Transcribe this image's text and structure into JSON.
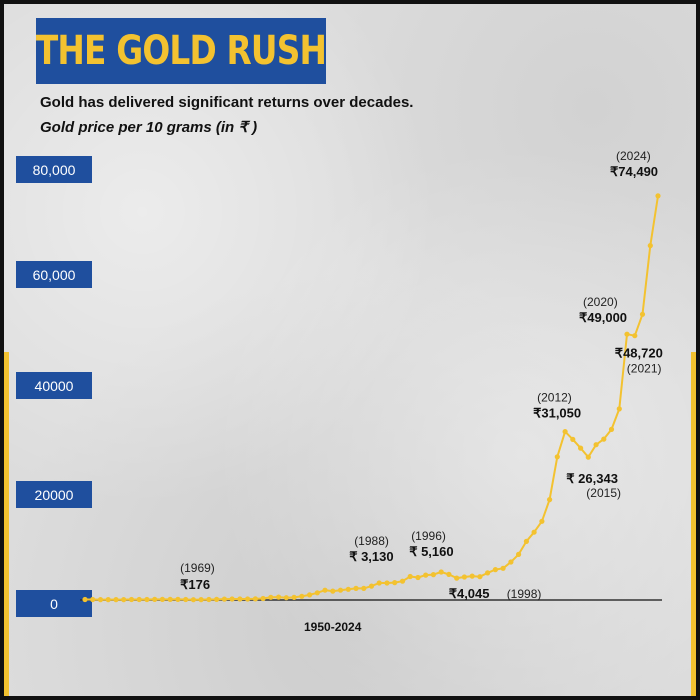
{
  "title": "THE GOLD RUSH",
  "subtitle": "Gold has delivered significant returns over decades.",
  "unit_label": "Gold price per 10 grams (in ₹ )",
  "colors": {
    "line": "#f3c230",
    "title_bg": "#1f4f9e",
    "title_text": "#f3c230",
    "tick_bg": "#1f4f9e",
    "axis": "#333333"
  },
  "chart_data": {
    "type": "line",
    "title": "THE GOLD RUSH",
    "subtitle": "Gold has delivered significant returns over decades.",
    "ylabel": "Gold price per 10 grams (in ₹ )",
    "xlabel": "1950-2024",
    "x_range": [
      1950,
      2024
    ],
    "ylim": [
      0,
      80000
    ],
    "y_ticks": [
      "0",
      "20000",
      "40000",
      "60,000",
      "80,000"
    ],
    "y_tick_values": [
      0,
      20000,
      40000,
      60000,
      80000
    ],
    "grid": false,
    "series": [
      {
        "x": [
          1950,
          1951,
          1952,
          1953,
          1954,
          1955,
          1956,
          1957,
          1958,
          1959,
          1960,
          1961,
          1962,
          1963,
          1964,
          1965,
          1966,
          1967,
          1968,
          1969,
          1970,
          1971,
          1972,
          1973,
          1974,
          1975,
          1976,
          1977,
          1978,
          1979,
          1980,
          1981,
          1982,
          1983,
          1984,
          1985,
          1986,
          1987,
          1988,
          1989,
          1990,
          1991,
          1992,
          1993,
          1994,
          1995,
          1996,
          1997,
          1998,
          1999,
          2000,
          2001,
          2002,
          2003,
          2004,
          2005,
          2006,
          2007,
          2008,
          2009,
          2010,
          2011,
          2012,
          2013,
          2014,
          2015,
          2016,
          2017,
          2018,
          2019,
          2020,
          2021,
          2022,
          2023,
          2024
        ],
        "values": [
          99,
          98,
          76,
          73,
          77,
          79,
          90,
          90,
          95,
          102,
          112,
          119,
          119,
          97,
          63,
          72,
          84,
          103,
          162,
          176,
          184,
          193,
          202,
          278,
          506,
          540,
          432,
          486,
          685,
          937,
          1330,
          1800,
          1645,
          1800,
          1970,
          2130,
          2140,
          2570,
          3130,
          3140,
          3200,
          3466,
          4334,
          4140,
          4598,
          4680,
          5160,
          4725,
          4045,
          4234,
          4400,
          4300,
          4990,
          5600,
          5850,
          7000,
          8400,
          10800,
          12500,
          14500,
          18500,
          26400,
          31050,
          29600,
          28006,
          26343,
          28623,
          29667,
          31438,
          35220,
          49000,
          48720,
          52670,
          65330,
          74490
        ]
      }
    ],
    "annotations": [
      {
        "year_label": "(1969)",
        "value_label": "₹176",
        "x": 1969,
        "y": 176
      },
      {
        "year_label": "(1988)",
        "value_label": "₹ 3,130",
        "x": 1988,
        "y": 3130
      },
      {
        "year_label": "(1996)",
        "value_label": "₹ 5,160",
        "x": 1996,
        "y": 5160
      },
      {
        "year_label": "(1998)",
        "value_label": "₹4,045",
        "x": 1998,
        "y": 4045
      },
      {
        "year_label": "(2012)",
        "value_label": "₹31,050",
        "x": 2012,
        "y": 31050
      },
      {
        "year_label": "(2015)",
        "value_label": "₹ 26,343",
        "x": 2015,
        "y": 26343
      },
      {
        "year_label": "(2020)",
        "value_label": "₹49,000",
        "x": 2020,
        "y": 49000
      },
      {
        "year_label": "(2021)",
        "value_label": "₹48,720",
        "x": 2021,
        "y": 48720
      },
      {
        "year_label": "(2024)",
        "value_label": "₹74,490",
        "x": 2024,
        "y": 74490
      }
    ]
  }
}
